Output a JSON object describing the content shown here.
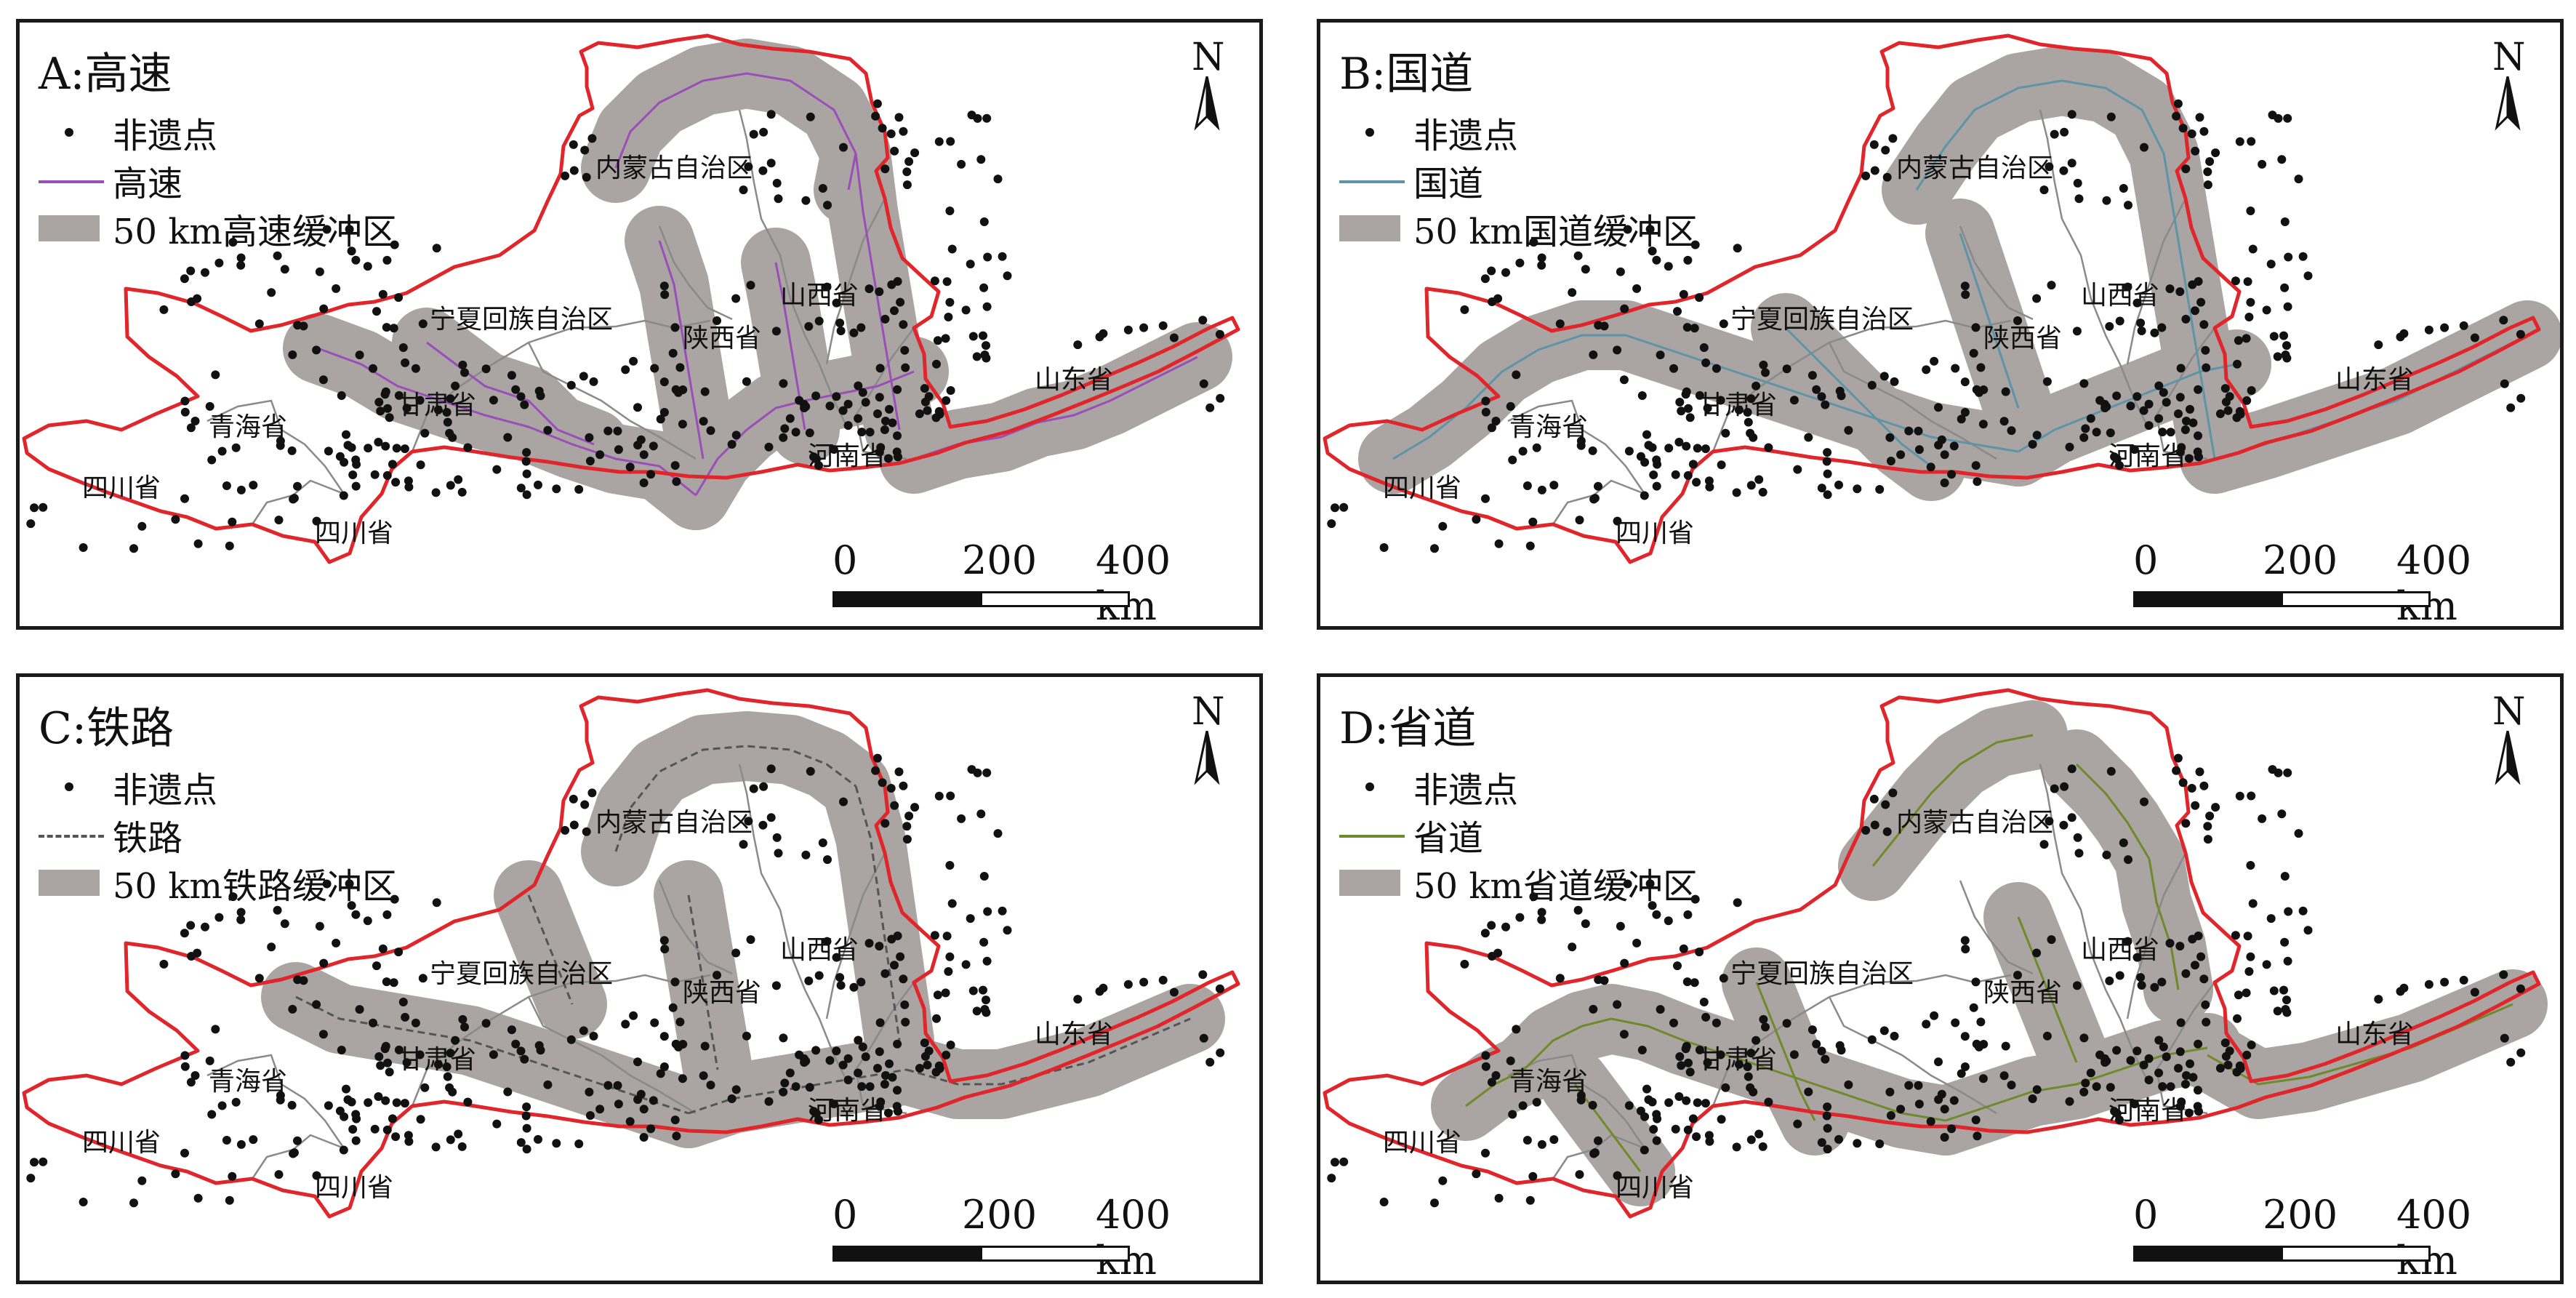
{
  "panels": [
    {
      "id": "A",
      "title": "A:高速",
      "line_label": "高速",
      "buffer_label": "50 km高速缓冲区",
      "line_color": "#9a4fb8",
      "line_style": "solid",
      "road_variant": "highway"
    },
    {
      "id": "B",
      "title": "B:国道",
      "line_label": "国道",
      "buffer_label": "50 km国道缓冲区",
      "line_color": "#5e94a8",
      "line_style": "solid",
      "road_variant": "national"
    },
    {
      "id": "C",
      "title": "C:铁路",
      "line_label": "铁路",
      "buffer_label": "50 km铁路缓冲区",
      "line_color": "#555555",
      "line_style": "dashed",
      "road_variant": "railway"
    },
    {
      "id": "D",
      "title": "D:省道",
      "line_label": "省道",
      "buffer_label": "50 km省道缓冲区",
      "line_color": "#6e8a2a",
      "line_style": "solid",
      "road_variant": "provincial"
    }
  ],
  "legend": {
    "point_label": "非遗点"
  },
  "north_label": "N",
  "scale": {
    "ticks": [
      "0",
      "200",
      "400 km"
    ]
  },
  "provinces": [
    "内蒙古自治区",
    "宁夏回族自治区",
    "陕西省",
    "山西省",
    "甘肃省",
    "青海省",
    "四川省",
    "四川省",
    "河南省",
    "山东省"
  ],
  "colors": {
    "boundary": "#e0262b",
    "buffer": "#aaa4a2",
    "points": "#111111",
    "frame": "#1a1a1a"
  }
}
